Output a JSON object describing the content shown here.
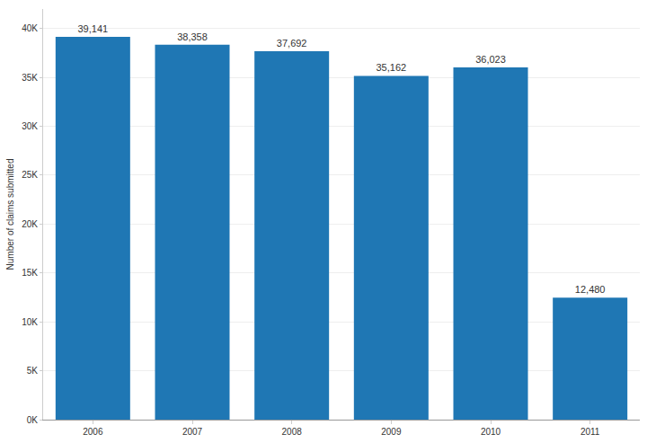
{
  "chart_data": {
    "type": "bar",
    "y_label": "Number of claims submitted",
    "categories": [
      "2006",
      "2007",
      "2008",
      "2009",
      "2010",
      "2011"
    ],
    "values": [
      39141,
      38358,
      37692,
      35162,
      36023,
      12480
    ],
    "value_labels": [
      "39,141",
      "38,358",
      "37,692",
      "35,162",
      "36,023",
      "12,480"
    ],
    "color": "#1f77b4",
    "ylim": [
      0,
      42000
    ],
    "yticks": [
      {
        "value": 0,
        "label": "0K"
      },
      {
        "value": 5000,
        "label": "5K"
      },
      {
        "value": 10000,
        "label": "10K"
      },
      {
        "value": 15000,
        "label": "15K"
      },
      {
        "value": 20000,
        "label": "20K"
      },
      {
        "value": 25000,
        "label": "25K"
      },
      {
        "value": 30000,
        "label": "30K"
      },
      {
        "value": 35000,
        "label": "35K"
      },
      {
        "value": 40000,
        "label": "40K"
      }
    ],
    "grid": true,
    "data_labels": true
  }
}
